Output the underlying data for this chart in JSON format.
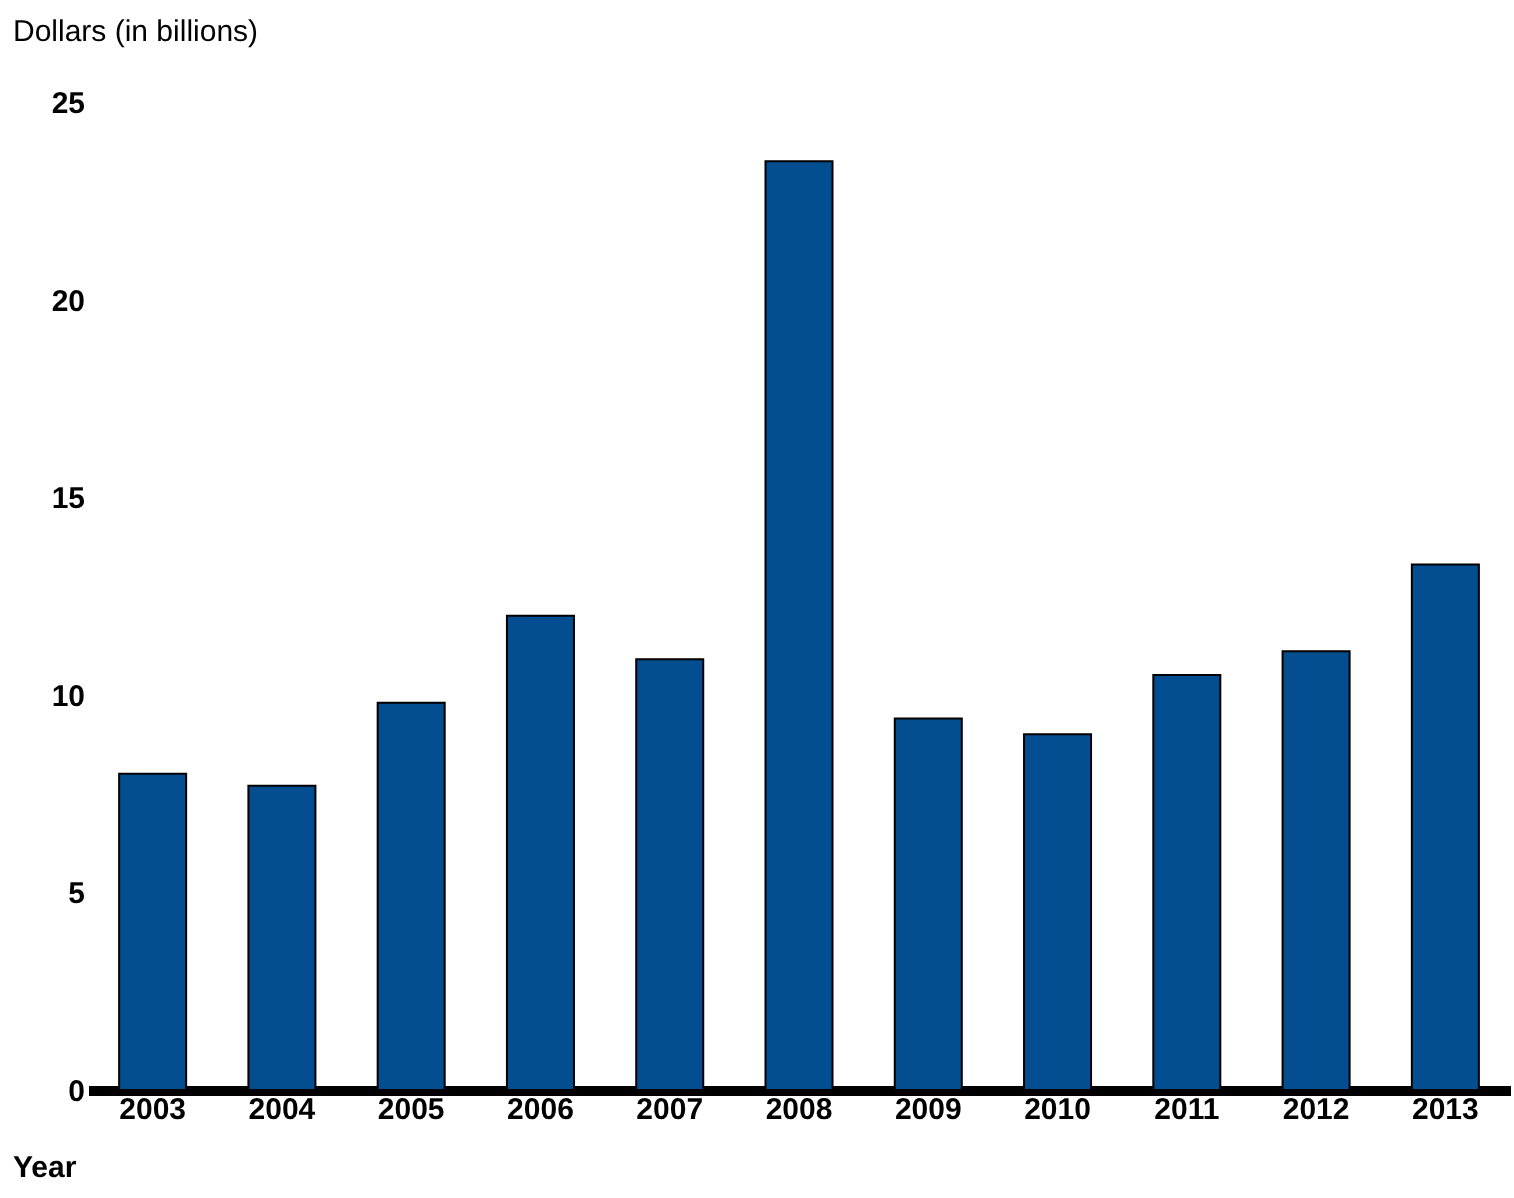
{
  "chart_data": {
    "type": "bar",
    "ylabel": "Dollars (in billions)",
    "xlabel": "Year",
    "categories": [
      "2003",
      "2004",
      "2005",
      "2006",
      "2007",
      "2008",
      "2009",
      "2010",
      "2011",
      "2012",
      "2013"
    ],
    "values": [
      8.0,
      7.7,
      9.8,
      12.0,
      10.9,
      23.5,
      9.4,
      9.0,
      10.5,
      11.1,
      13.3
    ],
    "color": "#034e91",
    "ylim": [
      0,
      25
    ],
    "yticks": [
      0,
      5,
      10,
      15,
      20,
      25
    ],
    "grid": false
  }
}
